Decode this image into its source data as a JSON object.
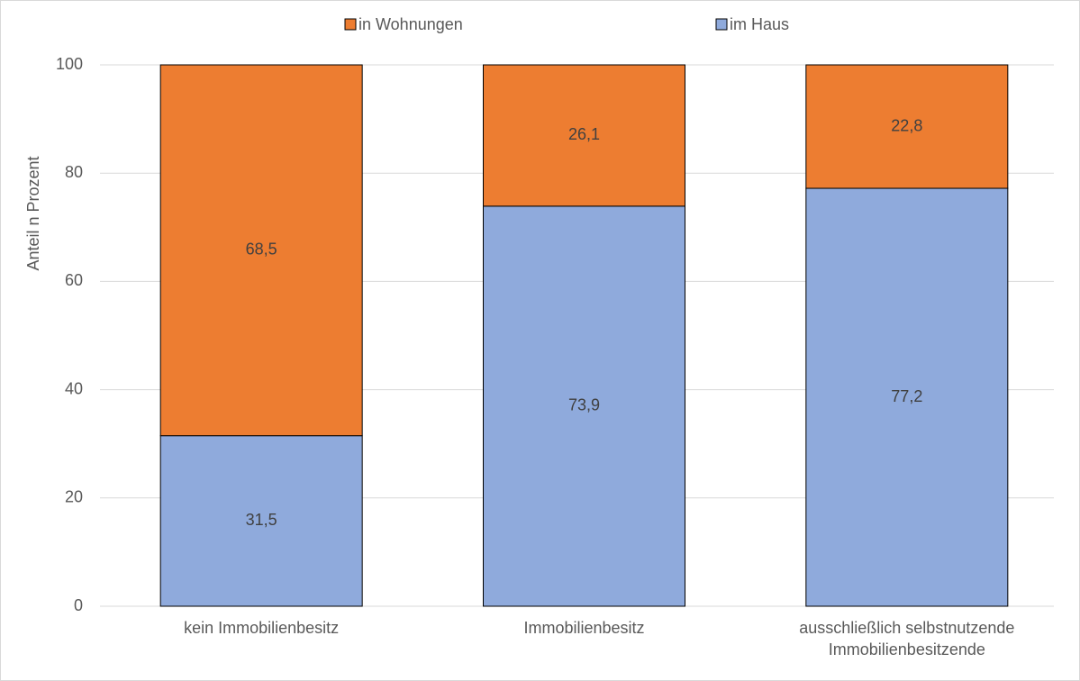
{
  "chart_data": {
    "type": "stacked_bar",
    "y_label": "Anteil n Prozent",
    "categories": [
      "kein Immobilienbesitz",
      "Immobilienbesitz",
      "ausschließlich selbstnutzende Immobilienbesitzende"
    ],
    "series": [
      {
        "name": "im Haus",
        "color": "#8faadc",
        "values": [
          31.5,
          73.9,
          77.2
        ],
        "value_labels": [
          "31,5",
          "73,9",
          "77,2"
        ]
      },
      {
        "name": "in Wohnungen",
        "color": "#ed7d31",
        "values": [
          68.5,
          26.1,
          22.8
        ],
        "value_labels": [
          "68,5",
          "26,1",
          "22,8"
        ]
      }
    ],
    "ylim": [
      0,
      100
    ],
    "yticks": [
      0,
      20,
      40,
      60,
      80,
      100
    ],
    "grid": true,
    "legend": "top"
  }
}
